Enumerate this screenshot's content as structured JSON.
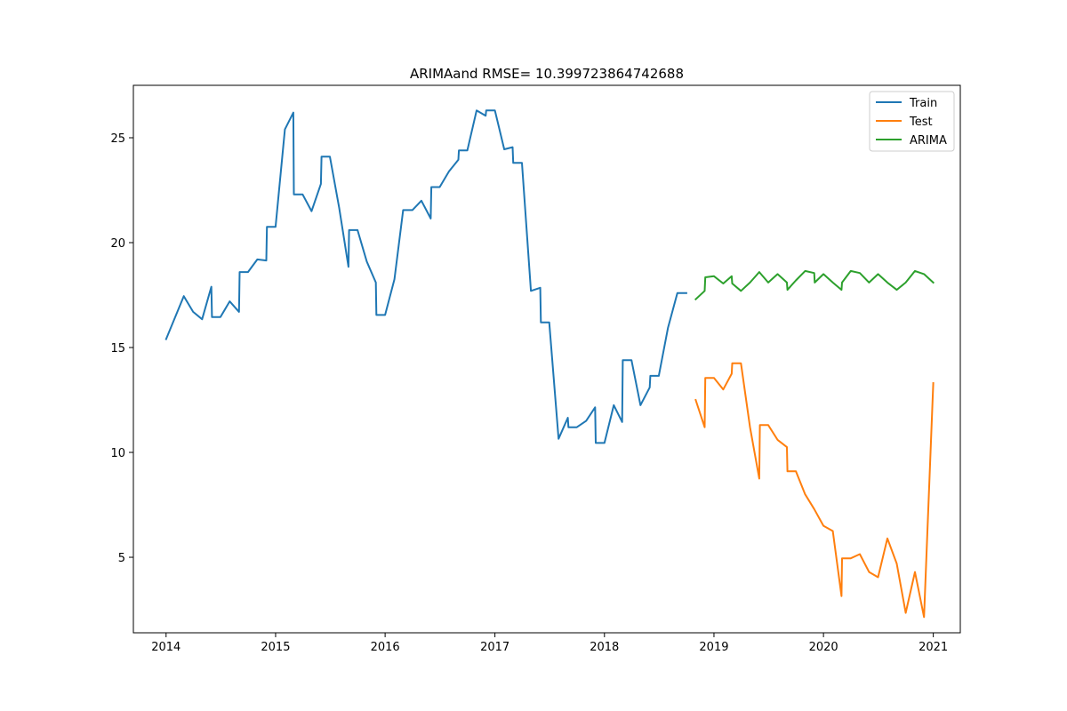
{
  "chart_data": {
    "type": "line",
    "title": "ARIMAand RMSE= 10.399723864742688",
    "xlabel": "",
    "ylabel": "",
    "x_axis": {
      "kind": "date",
      "range": [
        "2013-09-14",
        "2021-04-01"
      ],
      "ticks": [
        "2014",
        "2015",
        "2016",
        "2017",
        "2018",
        "2019",
        "2020",
        "2021"
      ]
    },
    "y_axis": {
      "range": [
        1.4,
        27.5
      ],
      "ticks": [
        5,
        10,
        15,
        20,
        25
      ]
    },
    "grid": false,
    "legend": {
      "position": "top-right",
      "entries": [
        "Train",
        "Test",
        "ARIMA"
      ]
    },
    "series": [
      {
        "name": "Train",
        "color": "#1f77b4",
        "points": [
          [
            "2014-01-01",
            15.4
          ],
          [
            "2014-03-01",
            17.45
          ],
          [
            "2014-04-01",
            16.7
          ],
          [
            "2014-05-01",
            16.35
          ],
          [
            "2014-06-01",
            17.9
          ],
          [
            "2014-06-03",
            16.45
          ],
          [
            "2014-07-01",
            16.45
          ],
          [
            "2014-08-01",
            17.2
          ],
          [
            "2014-09-01",
            16.7
          ],
          [
            "2014-09-03",
            18.6
          ],
          [
            "2014-10-01",
            18.6
          ],
          [
            "2014-11-01",
            19.2
          ],
          [
            "2014-12-01",
            19.15
          ],
          [
            "2014-12-03",
            20.75
          ],
          [
            "2015-01-01",
            20.75
          ],
          [
            "2015-02-01",
            25.4
          ],
          [
            "2015-03-01",
            26.2
          ],
          [
            "2015-03-03",
            22.3
          ],
          [
            "2015-04-01",
            22.3
          ],
          [
            "2015-05-01",
            21.5
          ],
          [
            "2015-06-01",
            22.8
          ],
          [
            "2015-06-03",
            24.1
          ],
          [
            "2015-07-01",
            24.1
          ],
          [
            "2015-08-01",
            21.65
          ],
          [
            "2015-09-01",
            18.85
          ],
          [
            "2015-09-03",
            20.6
          ],
          [
            "2015-10-01",
            20.6
          ],
          [
            "2015-11-01",
            19.1
          ],
          [
            "2015-12-01",
            18.1
          ],
          [
            "2015-12-03",
            16.55
          ],
          [
            "2016-01-01",
            16.55
          ],
          [
            "2016-02-01",
            18.25
          ],
          [
            "2016-03-01",
            21.55
          ],
          [
            "2016-04-01",
            21.55
          ],
          [
            "2016-05-01",
            22.0
          ],
          [
            "2016-06-01",
            21.15
          ],
          [
            "2016-06-03",
            22.65
          ],
          [
            "2016-07-01",
            22.65
          ],
          [
            "2016-08-01",
            23.4
          ],
          [
            "2016-09-01",
            23.95
          ],
          [
            "2016-09-03",
            24.4
          ],
          [
            "2016-10-01",
            24.4
          ],
          [
            "2016-11-01",
            26.3
          ],
          [
            "2016-12-01",
            26.05
          ],
          [
            "2016-12-03",
            26.3
          ],
          [
            "2017-01-01",
            26.3
          ],
          [
            "2017-02-01",
            24.45
          ],
          [
            "2017-03-01",
            24.55
          ],
          [
            "2017-03-03",
            23.8
          ],
          [
            "2017-04-01",
            23.8
          ],
          [
            "2017-05-01",
            17.7
          ],
          [
            "2017-06-01",
            17.85
          ],
          [
            "2017-06-03",
            16.2
          ],
          [
            "2017-07-01",
            16.2
          ],
          [
            "2017-08-01",
            10.65
          ],
          [
            "2017-09-01",
            11.65
          ],
          [
            "2017-09-03",
            11.2
          ],
          [
            "2017-10-01",
            11.2
          ],
          [
            "2017-11-01",
            11.5
          ],
          [
            "2017-12-01",
            12.15
          ],
          [
            "2017-12-03",
            10.45
          ],
          [
            "2018-01-01",
            10.45
          ],
          [
            "2018-02-01",
            12.25
          ],
          [
            "2018-03-01",
            11.45
          ],
          [
            "2018-03-03",
            14.4
          ],
          [
            "2018-04-01",
            14.4
          ],
          [
            "2018-05-01",
            12.25
          ],
          [
            "2018-06-01",
            13.1
          ],
          [
            "2018-06-03",
            13.65
          ],
          [
            "2018-07-01",
            13.65
          ],
          [
            "2018-08-01",
            15.95
          ],
          [
            "2018-09-01",
            17.6
          ],
          [
            "2018-10-01",
            17.6
          ]
        ]
      },
      {
        "name": "Test",
        "color": "#ff7f0e",
        "points": [
          [
            "2018-11-01",
            12.5
          ],
          [
            "2018-12-01",
            11.2
          ],
          [
            "2018-12-03",
            13.55
          ],
          [
            "2019-01-01",
            13.55
          ],
          [
            "2019-02-01",
            13.0
          ],
          [
            "2019-03-01",
            13.75
          ],
          [
            "2019-03-03",
            14.25
          ],
          [
            "2019-04-01",
            14.25
          ],
          [
            "2019-05-01",
            11.2
          ],
          [
            "2019-06-01",
            8.75
          ],
          [
            "2019-06-03",
            11.3
          ],
          [
            "2019-07-01",
            11.3
          ],
          [
            "2019-08-01",
            10.6
          ],
          [
            "2019-09-01",
            10.25
          ],
          [
            "2019-09-03",
            9.1
          ],
          [
            "2019-10-01",
            9.1
          ],
          [
            "2019-11-01",
            8.0
          ],
          [
            "2019-12-01",
            7.3
          ],
          [
            "2020-01-01",
            6.5
          ],
          [
            "2020-02-01",
            6.25
          ],
          [
            "2020-03-01",
            3.15
          ],
          [
            "2020-03-03",
            4.95
          ],
          [
            "2020-04-01",
            4.95
          ],
          [
            "2020-05-01",
            5.15
          ],
          [
            "2020-06-01",
            4.3
          ],
          [
            "2020-07-01",
            4.05
          ],
          [
            "2020-08-01",
            5.9
          ],
          [
            "2020-09-01",
            4.7
          ],
          [
            "2020-10-01",
            2.35
          ],
          [
            "2020-11-01",
            4.3
          ],
          [
            "2020-12-01",
            2.15
          ],
          [
            "2021-01-01",
            13.3
          ]
        ]
      },
      {
        "name": "ARIMA",
        "color": "#2ca02c",
        "points": [
          [
            "2018-11-01",
            17.3
          ],
          [
            "2018-12-01",
            17.7
          ],
          [
            "2018-12-03",
            18.35
          ],
          [
            "2019-01-01",
            18.4
          ],
          [
            "2019-02-01",
            18.05
          ],
          [
            "2019-03-01",
            18.4
          ],
          [
            "2019-03-03",
            18.05
          ],
          [
            "2019-04-01",
            17.7
          ],
          [
            "2019-05-01",
            18.1
          ],
          [
            "2019-06-01",
            18.6
          ],
          [
            "2019-07-01",
            18.1
          ],
          [
            "2019-08-01",
            18.5
          ],
          [
            "2019-09-01",
            18.1
          ],
          [
            "2019-09-03",
            17.75
          ],
          [
            "2019-10-01",
            18.2
          ],
          [
            "2019-11-01",
            18.65
          ],
          [
            "2019-12-01",
            18.55
          ],
          [
            "2019-12-03",
            18.1
          ],
          [
            "2020-01-01",
            18.5
          ],
          [
            "2020-02-01",
            18.1
          ],
          [
            "2020-03-01",
            17.75
          ],
          [
            "2020-03-03",
            18.1
          ],
          [
            "2020-04-01",
            18.65
          ],
          [
            "2020-05-01",
            18.55
          ],
          [
            "2020-06-01",
            18.1
          ],
          [
            "2020-07-01",
            18.5
          ],
          [
            "2020-08-01",
            18.1
          ],
          [
            "2020-09-01",
            17.75
          ],
          [
            "2020-10-01",
            18.1
          ],
          [
            "2020-11-01",
            18.65
          ],
          [
            "2020-12-01",
            18.5
          ],
          [
            "2021-01-01",
            18.1
          ]
        ]
      }
    ]
  }
}
